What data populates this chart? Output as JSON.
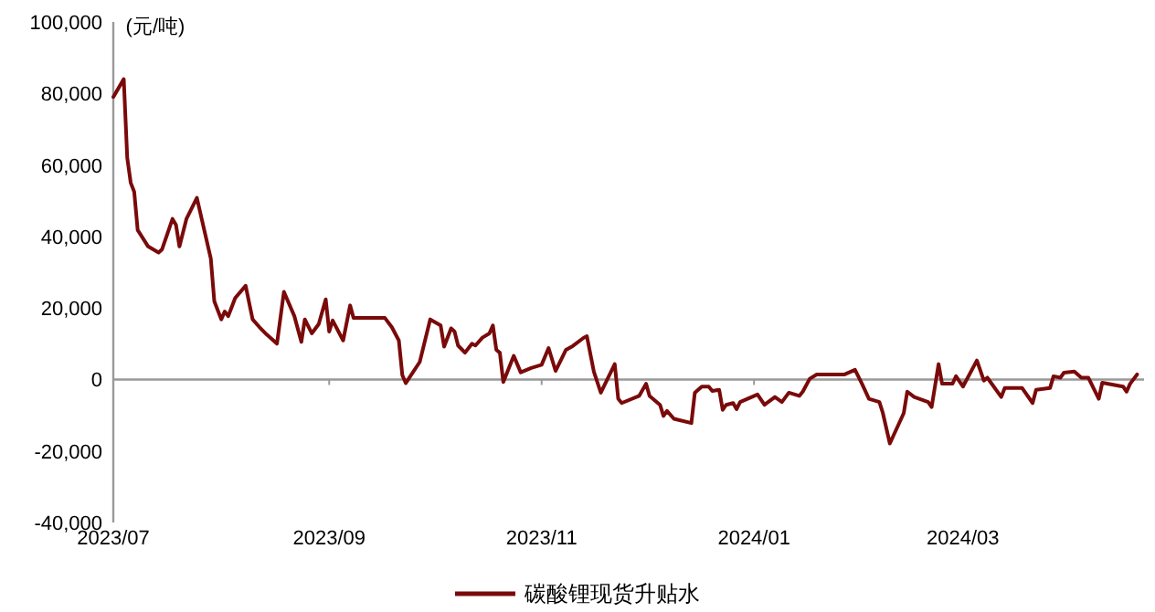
{
  "chart_data": {
    "type": "line",
    "ylabel": "(元/吨)",
    "legend": "bottom",
    "marker": "none",
    "line_style": "solid",
    "xlim": [
      "2023-07-01",
      "2024-04-22"
    ],
    "xticks": [
      {
        "value": "2023-07-01",
        "label": "2023/07"
      },
      {
        "value": "2023-09-01",
        "label": "2023/09"
      },
      {
        "value": "2023-11-01",
        "label": "2023/11"
      },
      {
        "value": "2024-01-01",
        "label": "2024/01"
      },
      {
        "value": "2024-03-01",
        "label": "2024/03"
      }
    ],
    "ylim": [
      -40000,
      100000
    ],
    "yticks": [
      {
        "value": -40000,
        "label": "-40,000"
      },
      {
        "value": -20000,
        "label": "-20,000"
      },
      {
        "value": 0,
        "label": "0"
      },
      {
        "value": 20000,
        "label": "20,000"
      },
      {
        "value": 40000,
        "label": "40,000"
      },
      {
        "value": 60000,
        "label": "60,000"
      },
      {
        "value": 80000,
        "label": "80,000"
      },
      {
        "value": 100000,
        "label": "100,000"
      }
    ],
    "x": [
      "2023-07-01",
      "2023-07-04",
      "2023-07-05",
      "2023-07-06",
      "2023-07-07",
      "2023-07-08",
      "2023-07-11",
      "2023-07-14",
      "2023-07-15",
      "2023-07-18",
      "2023-07-19",
      "2023-07-20",
      "2023-07-22",
      "2023-07-25",
      "2023-07-29",
      "2023-07-30",
      "2023-08-01",
      "2023-08-02",
      "2023-08-03",
      "2023-08-05",
      "2023-08-08",
      "2023-08-10",
      "2023-08-12",
      "2023-08-14",
      "2023-08-17",
      "2023-08-19",
      "2023-08-22",
      "2023-08-24",
      "2023-08-25",
      "2023-08-27",
      "2023-08-29",
      "2023-08-31",
      "2023-09-01",
      "2023-09-02",
      "2023-09-05",
      "2023-09-07",
      "2023-09-08",
      "2023-09-17",
      "2023-09-19",
      "2023-09-21",
      "2023-09-22",
      "2023-09-23",
      "2023-09-27",
      "2023-09-30",
      "2023-10-03",
      "2023-10-04",
      "2023-10-06",
      "2023-10-07",
      "2023-10-08",
      "2023-10-10",
      "2023-10-12",
      "2023-10-13",
      "2023-10-15",
      "2023-10-17",
      "2023-10-18",
      "2023-10-19",
      "2023-10-20",
      "2023-10-21",
      "2023-10-24",
      "2023-10-26",
      "2023-10-29",
      "2023-11-01",
      "2023-11-03",
      "2023-11-05",
      "2023-11-08",
      "2023-11-10",
      "2023-11-13",
      "2023-11-14",
      "2023-11-16",
      "2023-11-18",
      "2023-11-22",
      "2023-11-23",
      "2023-11-24",
      "2023-11-29",
      "2023-12-01",
      "2023-12-02",
      "2023-12-05",
      "2023-12-06",
      "2023-12-07",
      "2023-12-09",
      "2023-12-14",
      "2023-12-15",
      "2023-12-17",
      "2023-12-19",
      "2023-12-20",
      "2023-12-22",
      "2023-12-23",
      "2023-12-24",
      "2023-12-26",
      "2023-12-27",
      "2023-12-28",
      "2024-01-02",
      "2024-01-04",
      "2024-01-07",
      "2024-01-09",
      "2024-01-11",
      "2024-01-14",
      "2024-01-15",
      "2024-01-17",
      "2024-01-19",
      "2024-01-27",
      "2024-01-30",
      "2024-02-01",
      "2024-02-03",
      "2024-02-06",
      "2024-02-07",
      "2024-02-09",
      "2024-02-13",
      "2024-02-14",
      "2024-02-16",
      "2024-02-20",
      "2024-02-21",
      "2024-02-23",
      "2024-02-24",
      "2024-02-27",
      "2024-02-28",
      "2024-03-01",
      "2024-03-05",
      "2024-03-07",
      "2024-03-08",
      "2024-03-12",
      "2024-03-13",
      "2024-03-18",
      "2024-03-21",
      "2024-03-22",
      "2024-03-26",
      "2024-03-27",
      "2024-03-29",
      "2024-03-30",
      "2024-04-02",
      "2024-04-04",
      "2024-04-06",
      "2024-04-09",
      "2024-04-10",
      "2024-04-16",
      "2024-04-17",
      "2024-04-18",
      "2024-04-20"
    ],
    "series": [
      {
        "name": "碳酸锂现货升贴水",
        "color": "#7a0a0a",
        "values": [
          79000,
          84000,
          62000,
          55000,
          52500,
          41800,
          37200,
          35500,
          36400,
          44900,
          43200,
          37200,
          44900,
          50800,
          33800,
          21900,
          16800,
          19000,
          17700,
          22800,
          26200,
          16800,
          14600,
          12600,
          10000,
          24500,
          17700,
          10500,
          16800,
          12900,
          15500,
          22400,
          13400,
          16500,
          10900,
          20700,
          17200,
          17200,
          14600,
          10900,
          1200,
          -1000,
          4900,
          16800,
          15100,
          9200,
          14300,
          13400,
          9500,
          7500,
          10000,
          9500,
          11700,
          12900,
          15100,
          8300,
          7500,
          -700,
          6600,
          2000,
          3200,
          4100,
          8800,
          2400,
          8300,
          9400,
          11600,
          12100,
          2200,
          -3700,
          4300,
          -5400,
          -6600,
          -4600,
          -1200,
          -4600,
          -7100,
          -10200,
          -8800,
          -11000,
          -12200,
          -3700,
          -2000,
          -2000,
          -3200,
          -2900,
          -8500,
          -7100,
          -6600,
          -8300,
          -6300,
          -4200,
          -7100,
          -4900,
          -6300,
          -3700,
          -4600,
          -3400,
          200,
          1400,
          1400,
          2700,
          -1200,
          -5400,
          -6300,
          -9400,
          -17900,
          -9400,
          -3400,
          -4900,
          -6300,
          -7700,
          4300,
          -1200,
          -1200,
          900,
          -2000,
          5300,
          -300,
          500,
          -4900,
          -2400,
          -2400,
          -6600,
          -2900,
          -2400,
          900,
          500,
          1900,
          2200,
          500,
          500,
          -5400,
          -900,
          -2000,
          -3400,
          -1200,
          1400
        ]
      }
    ]
  }
}
